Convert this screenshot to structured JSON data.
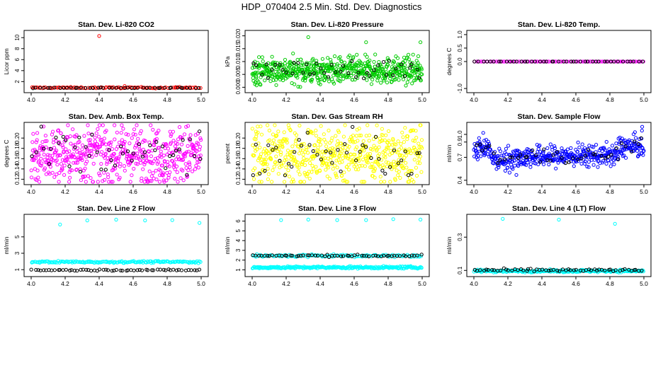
{
  "figure_title": "HDP_070404  2.5 Min. Std. Dev. Diagnostics",
  "chart_data": [
    {
      "type": "scatter",
      "title": "Stan. Dev. Li-820 CO2",
      "ylabel": "Licor ppm",
      "xlabel": "",
      "xlim": [
        4.0,
        5.0
      ],
      "ylim": [
        0.5,
        10.8
      ],
      "x_ticks": [
        "4.0",
        "4.2",
        "4.4",
        "4.6",
        "4.8",
        "5.0"
      ],
      "y_ticks": [
        "2",
        "4",
        "6",
        "8",
        "10"
      ],
      "y_tick_values": [
        2,
        4,
        6,
        8,
        10
      ],
      "series": [
        {
          "color": "#ff0000",
          "base": 0.9,
          "spread": 0.06,
          "count": 100,
          "outliers": [
            [
              4.4,
              10.3
            ],
            [
              4.55,
              1.2
            ],
            [
              4.85,
              1.0
            ]
          ]
        },
        {
          "color": "#000000",
          "base": 0.85,
          "spread": 0.03,
          "count": 45,
          "outliers": []
        }
      ]
    },
    {
      "type": "scatter",
      "title": "Stan. Dev. Li-820 Pressure",
      "ylabel": "kPa",
      "xlabel": "",
      "xlim": [
        4.0,
        5.0
      ],
      "ylim": [
        -0.001,
        0.021
      ],
      "x_ticks": [
        "4.0",
        "4.2",
        "4.4",
        "4.6",
        "4.8",
        "5.0"
      ],
      "y_ticks": [
        "0.000",
        "0.005",
        "0.010",
        "0.015",
        "0.020"
      ],
      "y_tick_values": [
        0.0,
        0.005,
        0.01,
        0.015,
        0.02
      ],
      "series": [
        {
          "color": "#00cc00",
          "base": 0.0065,
          "spread": 0.0025,
          "count": 600,
          "outliers": [
            [
              4.33,
              0.0195
            ],
            [
              4.67,
              0.0175
            ],
            [
              4.99,
              0.0175
            ]
          ]
        },
        {
          "color": "#000000",
          "base": 0.007,
          "spread": 0.0018,
          "count": 45,
          "outliers": []
        }
      ]
    },
    {
      "type": "scatter",
      "title": "Stan. Dev. Li-820 Temp.",
      "ylabel": "degrees C",
      "xlabel": "",
      "xlim": [
        4.0,
        5.0
      ],
      "ylim": [
        -1.05,
        1.05
      ],
      "x_ticks": [
        "4.0",
        "4.2",
        "4.4",
        "4.6",
        "4.8",
        "5.0"
      ],
      "y_ticks": [
        "-1.0",
        "0.0",
        "0.5",
        "1.0"
      ],
      "y_tick_values": [
        -1.0,
        0.0,
        0.5,
        1.0
      ],
      "series": [
        {
          "color": "#ff00ff",
          "base": 0.0,
          "spread": 0.0,
          "count": 100,
          "outliers": []
        },
        {
          "color": "#000000",
          "base": 0.0,
          "spread": 0.0,
          "count": 45,
          "outliers": []
        }
      ]
    },
    {
      "type": "scatter",
      "title": "Stan. Dev. Amb. Box Temp.",
      "ylabel": "degrees C",
      "xlabel": "",
      "xlim": [
        4.0,
        5.0
      ],
      "ylim": [
        0.115,
        0.225
      ],
      "x_ticks": [
        "4.0",
        "4.2",
        "4.4",
        "4.6",
        "4.8",
        "5.0"
      ],
      "y_ticks": [
        "0.12",
        "0.14",
        "0.16",
        "0.18",
        "0.20"
      ],
      "y_tick_values": [
        0.12,
        0.14,
        0.16,
        0.18,
        0.2
      ],
      "series": [
        {
          "color": "#ff00ff",
          "base": 0.168,
          "spread": 0.028,
          "count": 550,
          "outliers": [
            [
              4.78,
              0.118
            ]
          ]
        },
        {
          "color": "#000000",
          "base": 0.168,
          "spread": 0.022,
          "count": 45,
          "outliers": [
            [
              4.99,
              0.213
            ]
          ]
        }
      ]
    },
    {
      "type": "scatter",
      "title": "Stan. Dev. Gas Stream RH",
      "ylabel": "percent",
      "xlabel": "",
      "xlim": [
        4.0,
        5.0
      ],
      "ylim": [
        0.115,
        0.225
      ],
      "x_ticks": [
        "4.0",
        "4.2",
        "4.4",
        "4.6",
        "4.8",
        "5.0"
      ],
      "y_ticks": [
        "0.12",
        "0.14",
        "0.16",
        "0.18",
        "0.20"
      ],
      "y_tick_values": [
        0.12,
        0.14,
        0.16,
        0.18,
        0.2
      ],
      "series": [
        {
          "color": "#ffff00",
          "base": 0.168,
          "spread": 0.028,
          "count": 550,
          "outliers": []
        },
        {
          "color": "#000000",
          "base": 0.166,
          "spread": 0.022,
          "count": 45,
          "outliers": []
        }
      ]
    },
    {
      "type": "scatter",
      "title": "Stan. Dev. Sample Flow",
      "ylabel": "ml/min",
      "xlabel": "",
      "xlim": [
        4.0,
        5.0
      ],
      "ylim": [
        0.38,
        1.12
      ],
      "x_ticks": [
        "4.0",
        "4.2",
        "4.4",
        "4.6",
        "4.8",
        "5.0"
      ],
      "y_ticks": [
        "0.4",
        "0.7",
        "0.9",
        "1.0"
      ],
      "y_tick_values": [
        0.4,
        0.7,
        0.9,
        1.0
      ],
      "series": [
        {
          "color": "#0000ff",
          "base": 0.72,
          "spread": 0.07,
          "count": 500,
          "outliers": [
            [
              4.21,
              0.5
            ],
            [
              4.25,
              0.47
            ],
            [
              4.99,
              1.1
            ]
          ],
          "profile": "flow"
        },
        {
          "color": "#000000",
          "base": 0.72,
          "spread": 0.05,
          "count": 45,
          "outliers": [],
          "profile": "flow"
        }
      ]
    },
    {
      "type": "scatter",
      "title": "Stan. Dev. Line 2 Flow",
      "ylabel": "ml/min",
      "xlabel": "",
      "xlim": [
        4.0,
        5.0
      ],
      "ylim": [
        0.5,
        7.4
      ],
      "x_ticks": [
        "4.0",
        "4.2",
        "4.4",
        "4.6",
        "4.8",
        "5.0"
      ],
      "y_ticks": [
        "1",
        "3",
        "5"
      ],
      "y_tick_values": [
        1,
        3,
        5
      ],
      "series": [
        {
          "color": "#00ffff",
          "base": 1.95,
          "spread": 0.06,
          "count": 160,
          "outliers": [
            [
              4.17,
              6.5
            ],
            [
              4.33,
              7.0
            ],
            [
              4.5,
              7.1
            ],
            [
              4.67,
              7.0
            ],
            [
              4.83,
              7.05
            ],
            [
              4.99,
              6.7
            ]
          ]
        },
        {
          "color": "#000000",
          "base": 0.95,
          "spread": 0.04,
          "count": 60,
          "outliers": []
        }
      ]
    },
    {
      "type": "scatter",
      "title": "Stan. Dev. Line 3 Flow",
      "ylabel": "ml/min",
      "xlabel": "",
      "xlim": [
        4.0,
        5.0
      ],
      "ylim": [
        0.6,
        6.4
      ],
      "x_ticks": [
        "4.0",
        "4.2",
        "4.4",
        "4.6",
        "4.8",
        "5.0"
      ],
      "y_ticks": [
        "1",
        "2",
        "3",
        "4",
        "5",
        "6"
      ],
      "y_tick_values": [
        1,
        2,
        3,
        4,
        5,
        6
      ],
      "series": [
        {
          "color": "#00ffff",
          "base": 1.25,
          "spread": 0.06,
          "count": 250,
          "outliers": [
            [
              4.17,
              6.1
            ],
            [
              4.33,
              6.15
            ],
            [
              4.5,
              6.1
            ],
            [
              4.67,
              6.1
            ],
            [
              4.83,
              6.2
            ],
            [
              4.99,
              6.15
            ]
          ]
        },
        {
          "color": "#00ffff",
          "base": 2.45,
          "spread": 0.08,
          "count": 120,
          "outliers": []
        },
        {
          "color": "#000000",
          "base": 2.45,
          "spread": 0.05,
          "count": 60,
          "outliers": []
        }
      ]
    },
    {
      "type": "scatter",
      "title": "Stan. Dev. Line 4 (LT) Flow",
      "ylabel": "ml/min",
      "xlabel": "",
      "xlim": [
        4.0,
        5.0
      ],
      "ylim": [
        0.08,
        0.42
      ],
      "x_ticks": [
        "4.0",
        "4.2",
        "4.4",
        "4.6",
        "4.8",
        "5.0"
      ],
      "y_ticks": [
        "0.1",
        "0.3"
      ],
      "y_tick_values": [
        0.1,
        0.3
      ],
      "series": [
        {
          "color": "#00ffff",
          "base": 0.097,
          "spread": 0.004,
          "count": 250,
          "outliers": [
            [
              4.17,
              0.41
            ],
            [
              4.5,
              0.405
            ],
            [
              4.83,
              0.38
            ]
          ]
        },
        {
          "color": "#000000",
          "base": 0.101,
          "spread": 0.004,
          "count": 60,
          "outliers": []
        }
      ]
    }
  ]
}
